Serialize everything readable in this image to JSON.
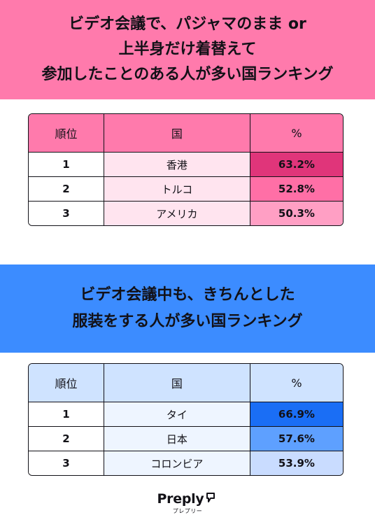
{
  "section1": {
    "title_lines": [
      "ビデオ会議で、パジャマのまま or",
      "上半身だけ着替えて",
      "参加したことのある人が多い国ランキング"
    ],
    "headers": [
      "順位",
      "国",
      "%"
    ],
    "rows": [
      {
        "rank": "1",
        "country": "香港",
        "pct": "63.2%",
        "color": "#e0357a"
      },
      {
        "rank": "2",
        "country": "トルコ",
        "pct": "52.8%",
        "color": "#ff6fa6"
      },
      {
        "rank": "3",
        "country": "アメリカ",
        "pct": "50.3%",
        "color": "#ff9fc4"
      }
    ],
    "banner_color": "#ff7aac"
  },
  "section2": {
    "title_lines": [
      "ビデオ会議中も、きちんとした",
      "服装をする人が多い国ランキング"
    ],
    "headers": [
      "順位",
      "国",
      "%"
    ],
    "rows": [
      {
        "rank": "1",
        "country": "タイ",
        "pct": "66.9%",
        "color": "#1a6ef5"
      },
      {
        "rank": "2",
        "country": "日本",
        "pct": "57.6%",
        "color": "#5ea0ff"
      },
      {
        "rank": "3",
        "country": "コロンビア",
        "pct": "53.9%",
        "color": "#c9dcff"
      }
    ],
    "banner_color": "#3c8cff"
  },
  "logo": {
    "brand": "Preply",
    "sub": "プレプリー",
    "icon": "preply-logo-icon"
  }
}
